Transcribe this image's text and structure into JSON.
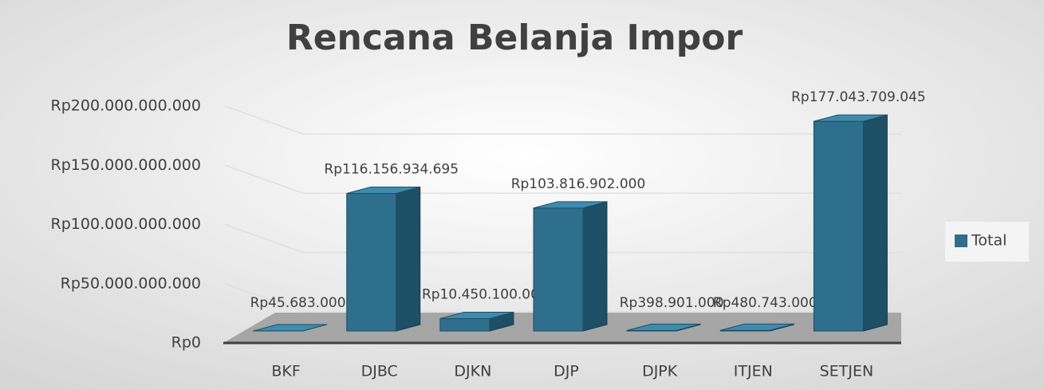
{
  "chart_data": {
    "type": "bar3d",
    "title": "Rencana Belanja Impor",
    "categories": [
      "BKF",
      "DJBC",
      "DJKN",
      "DJP",
      "DJPK",
      "ITJEN",
      "SETJEN"
    ],
    "series": [
      {
        "name": "Total",
        "color": "#2e6f8e",
        "values": [
          45683000,
          116156934695,
          10450100000,
          103816902000,
          398901000,
          480743000,
          177043709045
        ],
        "value_labels": [
          "Rp45.683.000",
          "Rp116.156.934.695",
          "Rp10.450.100.000",
          "Rp103.816.902.000",
          "Rp398.901.000",
          "Rp480.743.000",
          "Rp177.043.709.045"
        ]
      }
    ],
    "ylim": [
      0,
      200000000000
    ],
    "yticks": [
      {
        "value": 0,
        "label": "Rp0"
      },
      {
        "value": 50000000000,
        "label": "Rp50.000.000.000"
      },
      {
        "value": 100000000000,
        "label": "Rp100.000.000.000"
      },
      {
        "value": 150000000000,
        "label": "Rp150.000.000.000"
      },
      {
        "value": 200000000000,
        "label": "Rp200.000.000.000"
      }
    ],
    "grid": true,
    "legend": "right"
  }
}
